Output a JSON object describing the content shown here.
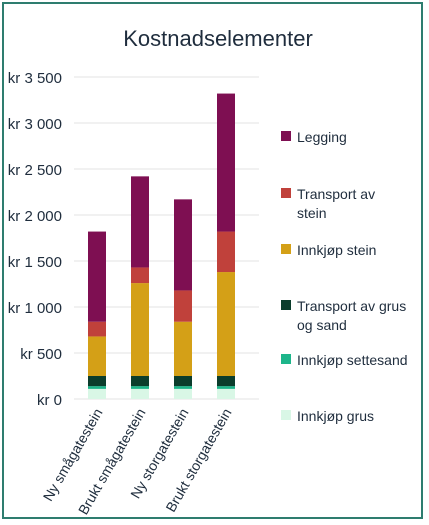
{
  "chart_data": {
    "type": "bar",
    "stacked": true,
    "title": "Kostnadselementer",
    "categories": [
      "Ny smågatestein",
      "Brukt smågatestein",
      "Ny storgatestein",
      "Brukt storgatestein"
    ],
    "series": [
      {
        "name": "Innkjøp grus",
        "color": "#d9f7e6",
        "values": [
          110,
          110,
          110,
          110
        ]
      },
      {
        "name": "Innkjøp settesand",
        "color": "#1db58a",
        "values": [
          30,
          30,
          30,
          30
        ]
      },
      {
        "name": "Transport av grus og sand",
        "color": "#0b3d2c",
        "values": [
          110,
          110,
          110,
          110
        ]
      },
      {
        "name": "Innkjøp stein",
        "color": "#d4a017",
        "values": [
          430,
          1010,
          590,
          1130
        ]
      },
      {
        "name": "Transport av stein",
        "color": "#c0413b",
        "values": [
          160,
          170,
          340,
          440
        ]
      },
      {
        "name": "Legging",
        "color": "#7e0f52",
        "values": [
          980,
          990,
          990,
          1500
        ]
      }
    ],
    "yticks": [
      "kr 0",
      "kr 500",
      "kr 1 000",
      "kr 1 500",
      "kr 2 000",
      "kr 2 500",
      "kr 3 000",
      "kr 3 500"
    ],
    "ylim": [
      0,
      3500
    ],
    "ystep": 500,
    "grid": true,
    "legend_position": "right"
  }
}
